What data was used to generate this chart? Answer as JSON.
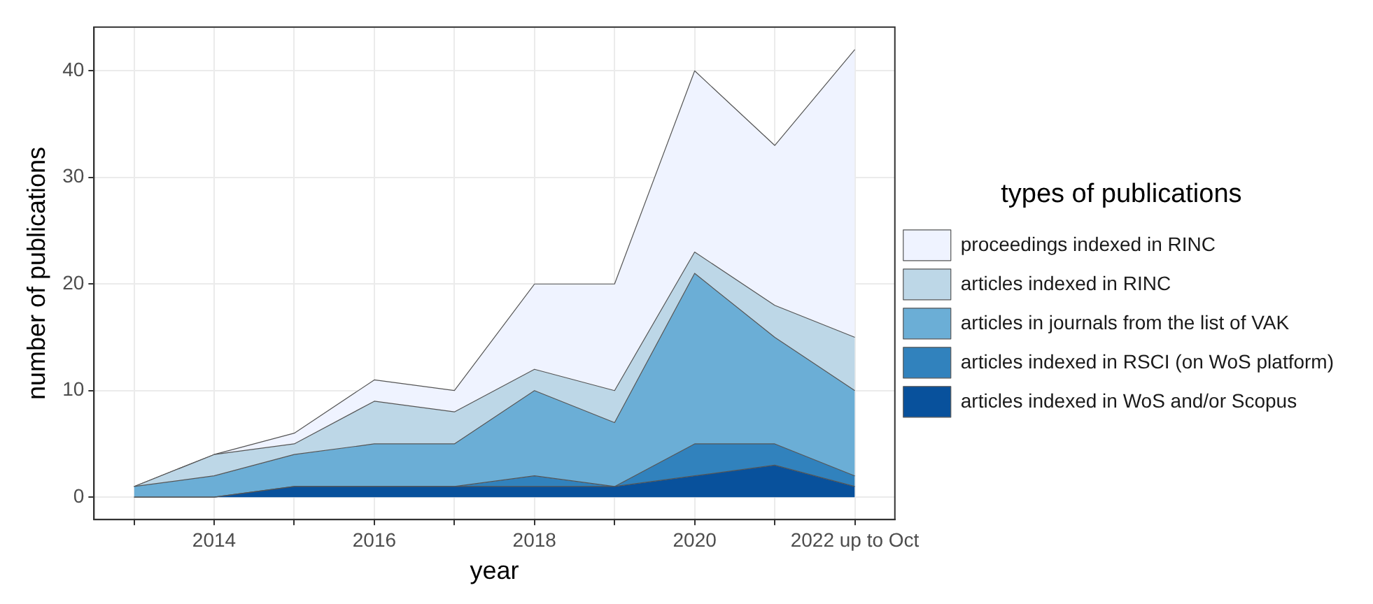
{
  "chart_data": {
    "type": "area",
    "stacked": true,
    "xlabel": "year",
    "ylabel": "number of publications",
    "legend_title": "types of publications",
    "legend": "right",
    "grid": true,
    "categories": [
      null,
      "2014",
      null,
      "2016",
      null,
      "2018",
      null,
      "2020",
      null,
      "2022 up to Oct"
    ],
    "ylim": [
      -2.1,
      44.1
    ],
    "yticks": [
      0,
      10,
      20,
      30,
      40
    ],
    "series": [
      {
        "name": "articles indexed in WoS and/or Scopus",
        "color": "#08519c",
        "values": [
          0,
          0,
          1,
          1,
          1,
          1,
          1,
          2,
          3,
          1
        ]
      },
      {
        "name": "articles indexed in RSCI (on WoS platform)",
        "color": "#3182bd",
        "values": [
          0,
          0,
          0,
          0,
          0,
          1,
          0,
          3,
          2,
          1
        ]
      },
      {
        "name": "articles in journals from the list of VAK",
        "color": "#6baed6",
        "values": [
          1,
          2,
          3,
          4,
          4,
          8,
          6,
          16,
          10,
          8
        ]
      },
      {
        "name": "articles indexed in RINC",
        "color": "#bdd7e7",
        "values": [
          0,
          2,
          1,
          4,
          3,
          2,
          3,
          2,
          3,
          5
        ]
      },
      {
        "name": "proceedings indexed in RINC",
        "color": "#eff3ff",
        "values": [
          0,
          0,
          1,
          2,
          2,
          8,
          10,
          17,
          15,
          27
        ]
      }
    ]
  }
}
